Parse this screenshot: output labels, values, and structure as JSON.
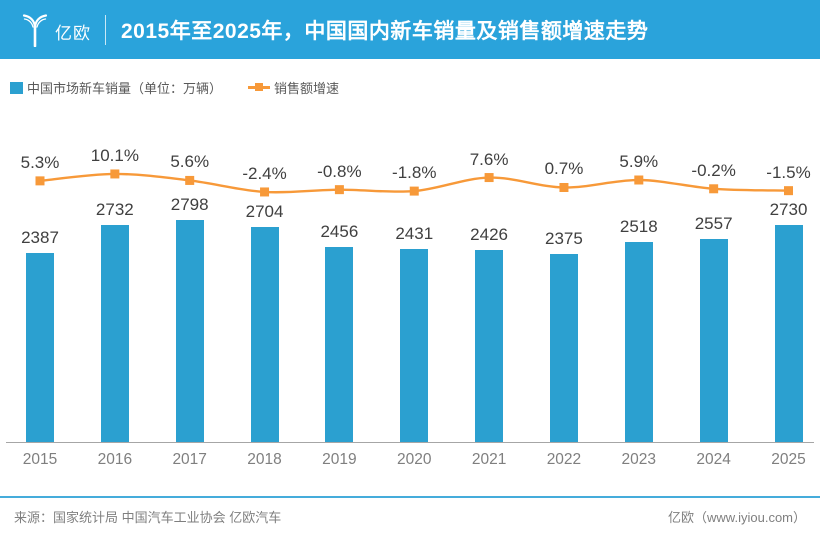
{
  "header": {
    "logo_text": "亿欧",
    "title": "2015年至2025年，中国国内新车销量及销售额增速走势"
  },
  "legend": {
    "bar_series_label": "中国市场新车销量（单位：万辆）",
    "line_series_label": "销售额增速"
  },
  "chart_data": {
    "type": "bar",
    "title": "2015年至2025年，中国国内新车销量及销售额增速走势",
    "categories": [
      "2015",
      "2016",
      "2017",
      "2018",
      "2019",
      "2020",
      "2021",
      "2022",
      "2023",
      "2024",
      "2025"
    ],
    "series": [
      {
        "name": "中国市场新车销量（单位：万辆）",
        "type": "bar",
        "color": "#2BA0D0",
        "values": [
          2387,
          2732,
          2798,
          2704,
          2456,
          2431,
          2426,
          2375,
          2518,
          2557,
          2730
        ]
      },
      {
        "name": "销售额增速",
        "type": "line",
        "color": "#F79939",
        "unit": "%",
        "values": [
          5.3,
          10.1,
          5.6,
          -2.4,
          -0.8,
          -1.8,
          7.6,
          0.7,
          5.9,
          -0.2,
          -1.5
        ],
        "labels": [
          "5.3%",
          "10.1%",
          "5.6%",
          "-2.4%",
          "-0.8%",
          "-1.8%",
          "7.6%",
          "0.7%",
          "5.9%",
          "-0.2%",
          "-1.5%"
        ]
      }
    ],
    "ylim": [
      0,
      2900
    ],
    "grid": false,
    "legend_position": "top-left",
    "value_labels_shown": true
  },
  "footer": {
    "source": "来源：国家统计局 中国汽车工业协会 亿欧汽车",
    "brand": "亿欧（www.iyiou.com）"
  },
  "colors": {
    "header_bg": "#2AA3DB",
    "bar": "#2BA0D0",
    "line": "#F79939",
    "axis": "#A6A6A6",
    "footer_divider": "#45ACDB",
    "label_text": "#404040",
    "tick_text": "#7F7F7F",
    "legend_text": "#595959",
    "footer_text": "#7F7F7F"
  }
}
